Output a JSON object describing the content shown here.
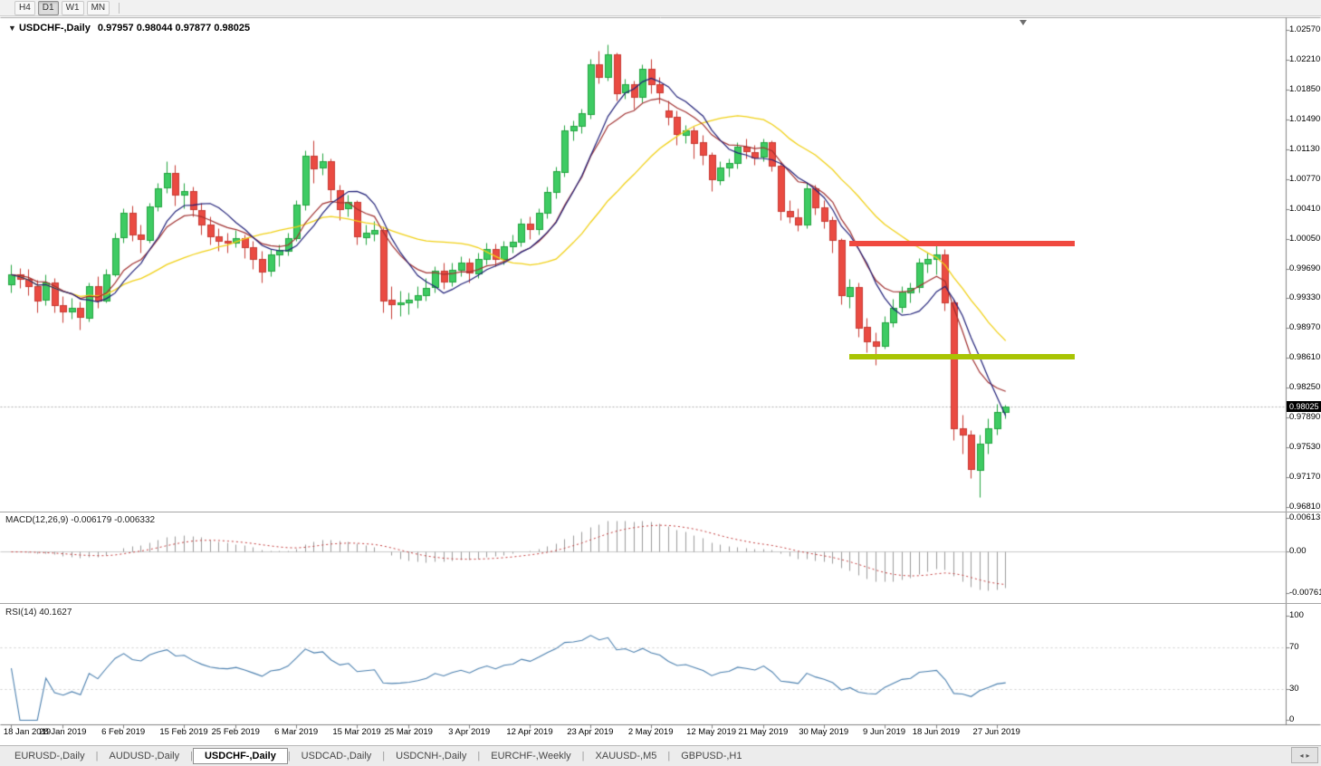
{
  "icons": {
    "dropdown": "▼",
    "scroll_left": "◂",
    "scroll_right": "▸"
  },
  "toolbar": {
    "period_buttons": [
      {
        "label": "H4",
        "active": false
      },
      {
        "label": "D1",
        "active": true
      },
      {
        "label": "W1",
        "active": false
      },
      {
        "label": "MN",
        "active": false
      }
    ]
  },
  "chart": {
    "title_symbol": "USDCHF-,Daily",
    "title_ohlc": "0.97957 0.98044 0.97877 0.98025",
    "current_price": "0.98025",
    "price_axis_labels": [
      "1.02570",
      "1.02210",
      "1.01850",
      "1.01490",
      "1.01130",
      "1.00770",
      "1.00410",
      "1.00050",
      "0.99690",
      "0.99330",
      "0.98970",
      "0.98610",
      "0.98250",
      "0.97890",
      "0.97530",
      "0.97170",
      "0.96810"
    ],
    "date_axis_labels": [
      {
        "label": "18 Jan 2019",
        "index": 0
      },
      {
        "label": "28 Jan 2019",
        "index": 6
      },
      {
        "label": "6 Feb 2019",
        "index": 13
      },
      {
        "label": "15 Feb 2019",
        "index": 20
      },
      {
        "label": "25 Feb 2019",
        "index": 26
      },
      {
        "label": "6 Mar 2019",
        "index": 33
      },
      {
        "label": "15 Mar 2019",
        "index": 40
      },
      {
        "label": "25 Mar 2019",
        "index": 46
      },
      {
        "label": "3 Apr 2019",
        "index": 53
      },
      {
        "label": "12 Apr 2019",
        "index": 60
      },
      {
        "label": "23 Apr 2019",
        "index": 67
      },
      {
        "label": "2 May 2019",
        "index": 74
      },
      {
        "label": "12 May 2019",
        "index": 81
      },
      {
        "label": "21 May 2019",
        "index": 87
      },
      {
        "label": "30 May 2019",
        "index": 94
      },
      {
        "label": "9 Jun 2019",
        "index": 101
      },
      {
        "label": "18 Jun 2019",
        "index": 107
      },
      {
        "label": "27 Jun 2019",
        "index": 114
      }
    ],
    "macd_label": "MACD(12,26,9) -0.006179 -0.006332",
    "macd_axis_labels": [
      "0.00613",
      "0.00",
      "-0.007612"
    ],
    "rsi_label": "RSI(14) 40.1627",
    "rsi_axis_labels": [
      "100",
      "70",
      "30",
      "0"
    ],
    "levels": [
      {
        "name": "resistance-line",
        "price": 0.9999,
        "color": "#f0493f",
        "from_index": 97,
        "to_index": 123
      },
      {
        "name": "support-line",
        "price": 0.9862,
        "color": "#a9c403",
        "from_index": 97,
        "to_index": 123
      }
    ],
    "colors": {
      "candle_up": "#3ecb63",
      "candle_up_border": "#21a33e",
      "candle_down": "#ea4b42",
      "candle_down_border": "#c63a32",
      "ma_fast": "#202078",
      "ma_mid": "#a03030",
      "ma_slow": "#f0d016",
      "macd_histogram": "#9b9b9b",
      "macd_signal": "#c23b3b",
      "rsi_line": "#4a7fae"
    }
  },
  "chart_data": {
    "type": "candlestick",
    "title": "USDCHF-,Daily",
    "xlabel": "date",
    "ylabel": "price",
    "y_axis_range": [
      0.9681,
      1.0257
    ],
    "indicator_panes": [
      {
        "name": "MACD(12,26,9)",
        "values": [
          -0.006179,
          -0.006332
        ],
        "range": [
          -0.007612,
          0.00613
        ]
      },
      {
        "name": "RSI(14)",
        "values": [
          40.1627
        ],
        "range": [
          0,
          100
        ]
      }
    ],
    "ohlc": [
      [
        "2019-01-18",
        0.995,
        0.9974,
        0.994,
        0.9962
      ],
      [
        "2019-01-21",
        0.9962,
        0.997,
        0.9945,
        0.9957
      ],
      [
        "2019-01-22",
        0.9957,
        0.9968,
        0.9937,
        0.9948
      ],
      [
        "2019-01-23",
        0.9948,
        0.9955,
        0.9916,
        0.9931
      ],
      [
        "2019-01-24",
        0.9931,
        0.9962,
        0.9925,
        0.9952
      ],
      [
        "2019-01-25",
        0.9952,
        0.9958,
        0.9916,
        0.9925
      ],
      [
        "2019-01-28",
        0.9925,
        0.9936,
        0.9904,
        0.9917
      ],
      [
        "2019-01-29",
        0.9917,
        0.9933,
        0.9908,
        0.9921
      ],
      [
        "2019-01-30",
        0.9921,
        0.9929,
        0.9895,
        0.991
      ],
      [
        "2019-01-31",
        0.991,
        0.9952,
        0.9905,
        0.9948
      ],
      [
        "2019-02-01",
        0.9948,
        0.996,
        0.9921,
        0.993
      ],
      [
        "2019-02-04",
        0.993,
        0.9968,
        0.9928,
        0.9962
      ],
      [
        "2019-02-05",
        0.9962,
        1.0012,
        0.996,
        1.0006
      ],
      [
        "2019-02-06",
        1.0006,
        1.0042,
        1.0,
        1.0036
      ],
      [
        "2019-02-07",
        1.0036,
        1.0045,
        1.0002,
        1.001
      ],
      [
        "2019-02-08",
        1.001,
        1.0022,
        0.9988,
        1.0004
      ],
      [
        "2019-02-11",
        1.0004,
        1.0048,
        1.0,
        1.0044
      ],
      [
        "2019-02-12",
        1.0044,
        1.0072,
        1.0038,
        1.0066
      ],
      [
        "2019-02-13",
        1.0066,
        1.0098,
        1.006,
        1.0084
      ],
      [
        "2019-02-14",
        1.0084,
        1.0094,
        1.0045,
        1.0058
      ],
      [
        "2019-02-15",
        1.0058,
        1.0072,
        1.0042,
        1.0062
      ],
      [
        "2019-02-18",
        1.0062,
        1.0068,
        1.0032,
        1.004
      ],
      [
        "2019-02-19",
        1.004,
        1.0048,
        1.001,
        1.0022
      ],
      [
        "2019-02-20",
        1.0022,
        1.0032,
        0.9998,
        1.0008
      ],
      [
        "2019-02-21",
        1.0008,
        1.0018,
        0.999,
        1.0002
      ],
      [
        "2019-02-22",
        1.0002,
        1.0012,
        0.9988,
        1.0
      ],
      [
        "2019-02-25",
        1.0,
        1.0015,
        0.9995,
        1.0006
      ],
      [
        "2019-02-26",
        1.0006,
        1.001,
        0.9982,
        0.9995
      ],
      [
        "2019-02-27",
        0.9995,
        1.0002,
        0.9968,
        0.9981
      ],
      [
        "2019-02-28",
        0.9981,
        0.999,
        0.9952,
        0.9966
      ],
      [
        "2019-03-01",
        0.9966,
        0.9992,
        0.996,
        0.9986
      ],
      [
        "2019-03-04",
        0.9986,
        0.9998,
        0.9972,
        0.9991
      ],
      [
        "2019-03-05",
        0.9991,
        1.0012,
        0.9985,
        1.0006
      ],
      [
        "2019-03-06",
        1.0006,
        1.0052,
        1.0002,
        1.0046
      ],
      [
        "2019-03-07",
        1.0046,
        1.0112,
        1.004,
        1.0105
      ],
      [
        "2019-03-08",
        1.0105,
        1.0124,
        1.0072,
        1.009
      ],
      [
        "2019-03-11",
        1.009,
        1.0108,
        1.0082,
        1.0098
      ],
      [
        "2019-03-12",
        1.0098,
        1.0102,
        1.0052,
        1.0064
      ],
      [
        "2019-03-13",
        1.0064,
        1.007,
        1.0028,
        1.0041
      ],
      [
        "2019-03-14",
        1.0041,
        1.0058,
        1.0032,
        1.0049
      ],
      [
        "2019-03-15",
        1.0049,
        1.0052,
        0.9998,
        1.0007
      ],
      [
        "2019-03-18",
        1.0007,
        1.0022,
        0.9998,
        1.0012
      ],
      [
        "2019-03-19",
        1.0012,
        1.0026,
        1.0002,
        1.0016
      ],
      [
        "2019-03-20",
        1.0016,
        1.002,
        0.9916,
        0.9931
      ],
      [
        "2019-03-21",
        0.9931,
        0.9948,
        0.9908,
        0.9926
      ],
      [
        "2019-03-22",
        0.9926,
        0.9942,
        0.9912,
        0.9928
      ],
      [
        "2019-03-25",
        0.9928,
        0.994,
        0.9914,
        0.9931
      ],
      [
        "2019-03-26",
        0.9931,
        0.9948,
        0.9922,
        0.9937
      ],
      [
        "2019-03-27",
        0.9937,
        0.9958,
        0.993,
        0.9946
      ],
      [
        "2019-03-28",
        0.9946,
        0.9972,
        0.994,
        0.9966
      ],
      [
        "2019-03-29",
        0.9966,
        0.9976,
        0.9944,
        0.9953
      ],
      [
        "2019-04-01",
        0.9953,
        0.9976,
        0.9948,
        0.9967
      ],
      [
        "2019-04-02",
        0.9967,
        0.9984,
        0.996,
        0.9976
      ],
      [
        "2019-04-03",
        0.9976,
        0.9982,
        0.9952,
        0.9964
      ],
      [
        "2019-04-04",
        0.9964,
        0.9988,
        0.9958,
        0.9981
      ],
      [
        "2019-04-05",
        0.9981,
        1.0,
        0.9974,
        0.9993
      ],
      [
        "2019-04-08",
        0.9993,
        0.9999,
        0.9972,
        0.9981
      ],
      [
        "2019-04-09",
        0.9981,
        1.0002,
        0.9974,
        0.9996
      ],
      [
        "2019-04-10",
        0.9996,
        1.001,
        0.9988,
        1.0001
      ],
      [
        "2019-04-11",
        1.0001,
        1.003,
        0.9996,
        1.0023
      ],
      [
        "2019-04-12",
        1.0023,
        1.0032,
        1.0004,
        1.0016
      ],
      [
        "2019-04-15",
        1.0016,
        1.0042,
        1.001,
        1.0036
      ],
      [
        "2019-04-16",
        1.0036,
        1.0068,
        1.003,
        1.0061
      ],
      [
        "2019-04-17",
        1.0061,
        1.0092,
        1.0054,
        1.0086
      ],
      [
        "2019-04-18",
        1.0086,
        1.0142,
        1.008,
        1.0136
      ],
      [
        "2019-04-19",
        1.0136,
        1.0148,
        1.0124,
        1.0141
      ],
      [
        "2019-04-22",
        1.0141,
        1.0162,
        1.0132,
        1.0156
      ],
      [
        "2019-04-23",
        1.0156,
        1.0222,
        1.015,
        1.0216
      ],
      [
        "2019-04-24",
        1.0216,
        1.0232,
        1.0192,
        1.0201
      ],
      [
        "2019-04-25",
        1.0201,
        1.024,
        1.0196,
        1.0228
      ],
      [
        "2019-04-26",
        1.0228,
        1.023,
        1.0172,
        1.0181
      ],
      [
        "2019-04-29",
        1.0181,
        1.0198,
        1.0174,
        1.0191
      ],
      [
        "2019-04-30",
        1.0191,
        1.0196,
        1.0162,
        1.0176
      ],
      [
        "2019-05-01",
        1.0176,
        1.0216,
        1.017,
        1.021
      ],
      [
        "2019-05-02",
        1.021,
        1.0222,
        1.018,
        1.0191
      ],
      [
        "2019-05-03",
        1.0191,
        1.02,
        1.0168,
        1.0181
      ],
      [
        "2019-05-06",
        1.016,
        1.0172,
        1.0142,
        1.0152
      ],
      [
        "2019-05-07",
        1.0152,
        1.016,
        1.0118,
        1.0131
      ],
      [
        "2019-05-08",
        1.0131,
        1.0142,
        1.012,
        1.0136
      ],
      [
        "2019-05-09",
        1.0136,
        1.014,
        1.0102,
        1.0121
      ],
      [
        "2019-05-10",
        1.0121,
        1.013,
        1.0094,
        1.0106
      ],
      [
        "2019-05-13",
        1.0106,
        1.011,
        1.0062,
        1.0076
      ],
      [
        "2019-05-14",
        1.0076,
        1.0098,
        1.007,
        1.0091
      ],
      [
        "2019-05-15",
        1.0091,
        1.0102,
        1.008,
        1.0096
      ],
      [
        "2019-05-16",
        1.0096,
        1.0122,
        1.009,
        1.0116
      ],
      [
        "2019-05-17",
        1.0116,
        1.0126,
        1.0102,
        1.011
      ],
      [
        "2019-05-20",
        1.011,
        1.0118,
        1.0094,
        1.0103
      ],
      [
        "2019-05-21",
        1.0103,
        1.0126,
        1.0098,
        1.0121
      ],
      [
        "2019-05-22",
        1.0121,
        1.0124,
        1.0086,
        1.0093
      ],
      [
        "2019-05-23",
        1.0093,
        1.0098,
        1.0028,
        1.0038
      ],
      [
        "2019-05-24",
        1.0038,
        1.0052,
        1.0024,
        1.0031
      ],
      [
        "2019-05-27",
        1.0031,
        1.0042,
        1.0014,
        1.0022
      ],
      [
        "2019-05-28",
        1.0022,
        1.0072,
        1.0018,
        1.0066
      ],
      [
        "2019-05-29",
        1.0066,
        1.007,
        1.0034,
        1.0043
      ],
      [
        "2019-05-30",
        1.0043,
        1.0052,
        1.0018,
        1.0027
      ],
      [
        "2019-05-31",
        1.0027,
        1.0032,
        0.9988,
        1.0003
      ],
      [
        "2019-06-03",
        1.0003,
        1.0006,
        0.9926,
        0.9936
      ],
      [
        "2019-06-04",
        0.9936,
        0.9956,
        0.9922,
        0.9947
      ],
      [
        "2019-06-05",
        0.9947,
        0.9952,
        0.9886,
        0.9898
      ],
      [
        "2019-06-06",
        0.9898,
        0.991,
        0.9868,
        0.9881
      ],
      [
        "2019-06-07",
        0.9881,
        0.9892,
        0.9853,
        0.9876
      ],
      [
        "2019-06-10",
        0.9876,
        0.9912,
        0.9872,
        0.9904
      ],
      [
        "2019-06-11",
        0.9904,
        0.9932,
        0.9898,
        0.9922
      ],
      [
        "2019-06-12",
        0.9922,
        0.9948,
        0.9916,
        0.9941
      ],
      [
        "2019-06-13",
        0.9941,
        0.9952,
        0.9928,
        0.9946
      ],
      [
        "2019-06-14",
        0.9946,
        0.9982,
        0.994,
        0.9976
      ],
      [
        "2019-06-17",
        0.9976,
        0.9988,
        0.9964,
        0.9981
      ],
      [
        "2019-06-18",
        0.9981,
        1.0,
        0.9962,
        0.9986
      ],
      [
        "2019-06-19",
        0.9986,
        0.9992,
        0.9918,
        0.9928
      ],
      [
        "2019-06-20",
        0.9928,
        0.9932,
        0.9762,
        0.9776
      ],
      [
        "2019-06-21",
        0.9776,
        0.9792,
        0.9746,
        0.9768
      ],
      [
        "2019-06-24",
        0.9768,
        0.9774,
        0.9716,
        0.9726
      ],
      [
        "2019-06-25",
        0.9726,
        0.9768,
        0.9693,
        0.9758
      ],
      [
        "2019-06-26",
        0.9758,
        0.9788,
        0.9746,
        0.9776
      ],
      [
        "2019-06-27",
        0.9776,
        0.9806,
        0.9768,
        0.9796
      ],
      [
        "2019-06-28",
        0.97957,
        0.98044,
        0.97877,
        0.98025
      ]
    ]
  },
  "tabs": {
    "items": [
      {
        "label": "EURUSD-,Daily",
        "active": false
      },
      {
        "label": "AUDUSD-,Daily",
        "active": false
      },
      {
        "label": "USDCHF-,Daily",
        "active": true
      },
      {
        "label": "USDCAD-,Daily",
        "active": false
      },
      {
        "label": "USDCNH-,Daily",
        "active": false
      },
      {
        "label": "EURCHF-,Weekly",
        "active": false
      },
      {
        "label": "XAUUSD-,M5",
        "active": false
      },
      {
        "label": "GBPUSD-,H1",
        "active": false
      }
    ]
  }
}
